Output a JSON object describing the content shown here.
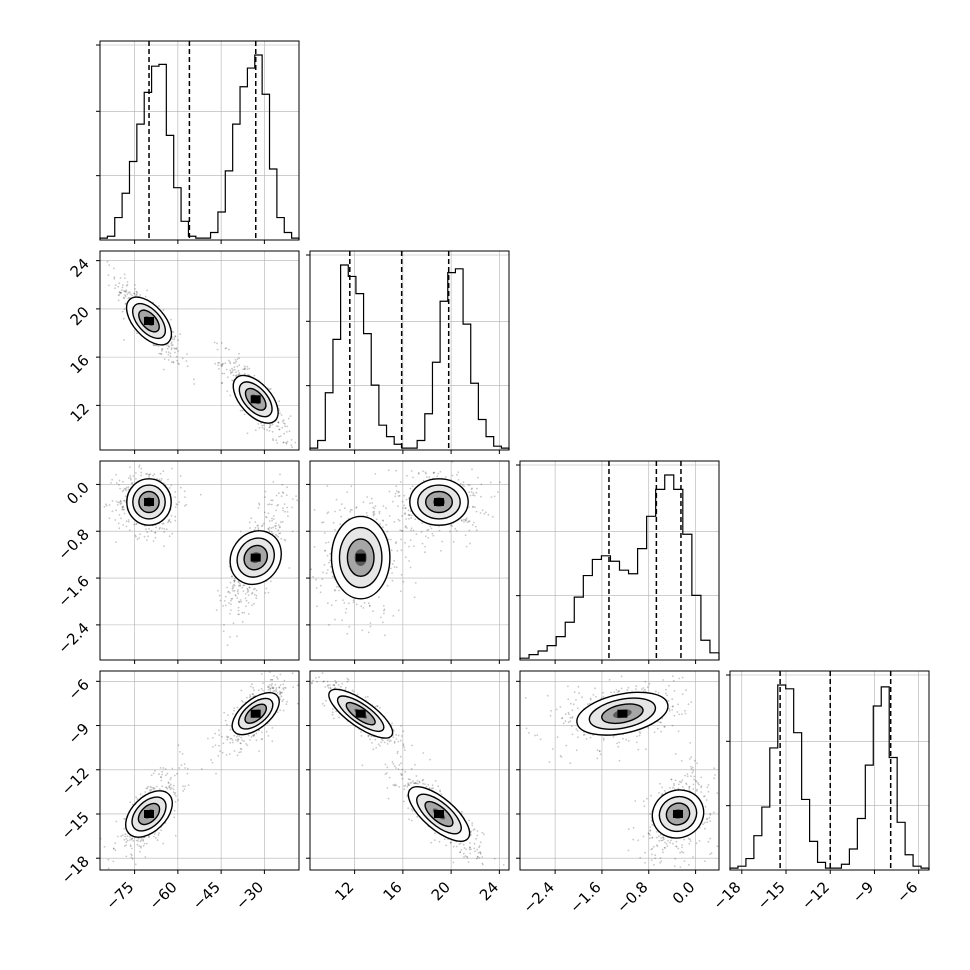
{
  "chart_data": {
    "type": "corner",
    "parameters": 4,
    "quantile_lines": [
      [
        -70,
        -56,
        -33
      ],
      [
        11.6,
        15.9,
        19.8
      ],
      [
        -1.48,
        -0.67,
        -0.25
      ],
      [
        -15.4,
        -12.0,
        -7.9
      ]
    ],
    "axis_ranges": [
      [
        -87,
        -18
      ],
      [
        8.3,
        24.8
      ],
      [
        -3.0,
        0.4
      ],
      [
        -18.8,
        -5.3
      ]
    ],
    "ticks": [
      [
        -75,
        -60,
        -45,
        -30
      ],
      [
        12,
        16,
        20,
        24
      ],
      [
        -2.4,
        -1.6,
        -0.8,
        0.0
      ],
      [
        -18,
        -15,
        -12,
        -9,
        -6
      ]
    ],
    "tick_labels": [
      [
        "−75",
        "−60",
        "−45",
        "−30"
      ],
      [
        "12",
        "16",
        "20",
        "24"
      ],
      [
        "−2.4",
        "−1.6",
        "−0.8",
        "0.0"
      ],
      [
        "−18",
        "−15",
        "−12",
        "−9",
        "−6"
      ]
    ],
    "histograms": [
      {
        "edges_min": -87,
        "edges_max": -18,
        "counts": [
          0.01,
          0.02,
          0.12,
          0.25,
          0.42,
          0.62,
          0.79,
          0.93,
          0.94,
          0.56,
          0.28,
          0.1,
          0.02,
          0.01,
          0.01,
          0.04,
          0.15,
          0.37,
          0.62,
          0.82,
          0.92,
          0.99,
          0.78,
          0.38,
          0.12,
          0.04,
          0.01
        ]
      },
      {
        "edges_min": 8.3,
        "edges_max": 24.8,
        "counts": [
          0.01,
          0.05,
          0.3,
          0.58,
          0.97,
          0.91,
          0.82,
          0.61,
          0.34,
          0.13,
          0.07,
          0.03,
          0.01,
          0.01,
          0.05,
          0.19,
          0.46,
          0.78,
          0.93,
          0.95,
          0.66,
          0.35,
          0.16,
          0.07,
          0.02,
          0.01
        ]
      },
      {
        "edges_min": -3.0,
        "edges_max": 0.4,
        "counts": [
          0.01,
          0.03,
          0.05,
          0.08,
          0.13,
          0.21,
          0.35,
          0.47,
          0.56,
          0.58,
          0.55,
          0.5,
          0.48,
          0.62,
          0.8,
          0.95,
          1.03,
          0.95,
          0.7,
          0.36,
          0.11,
          0.04
        ]
      },
      {
        "edges_min": -18.8,
        "edges_max": -5.3,
        "counts": [
          0.01,
          0.02,
          0.06,
          0.18,
          0.33,
          0.64,
          0.97,
          0.95,
          0.72,
          0.37,
          0.15,
          0.04,
          0.01,
          0.01,
          0.03,
          0.11,
          0.27,
          0.55,
          0.86,
          0.96,
          0.59,
          0.25,
          0.08,
          0.02,
          0.01
        ]
      }
    ],
    "modes": [
      {
        "centers": [
          -70,
          -33
        ],
        "weights": [
          0.5,
          0.5
        ]
      },
      {
        "centers": [
          19.0,
          12.5
        ],
        "weights": [
          0.5,
          0.5
        ]
      },
      {
        "centers": [
          -0.3,
          -1.25
        ],
        "weights": [
          0.5,
          0.5
        ]
      },
      {
        "centers": [
          -15.0,
          -8.2
        ],
        "weights": [
          0.5,
          0.5
        ]
      }
    ],
    "grid": true,
    "contour_levels": 4
  }
}
